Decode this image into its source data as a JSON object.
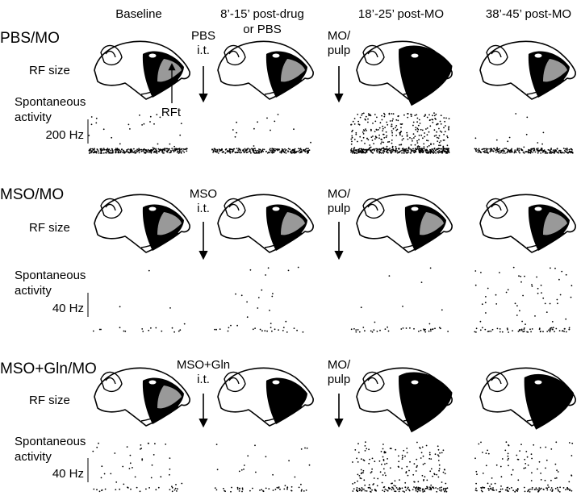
{
  "columns": [
    [
      "Baseline"
    ],
    [
      "8’-15’ post-drug",
      "or PBS"
    ],
    [
      "18’-25’ post-MO"
    ],
    [
      "38’-45’ post-MO"
    ]
  ],
  "annotation": "RFt",
  "rows": [
    {
      "title": "PBS/MO",
      "rf_label": "RF size",
      "activity_label": [
        "Spontaneous",
        "activity"
      ],
      "scale": "200 Hz",
      "drug": [
        "PBS",
        "i.t."
      ],
      "stimulus": [
        "MO/",
        "pulp"
      ]
    },
    {
      "title": "MSO/MO",
      "rf_label": "RF size",
      "activity_label": [
        "Spontaneous",
        "activity"
      ],
      "scale": "40 Hz",
      "drug": [
        "MSO",
        "i.t."
      ],
      "stimulus": [
        "MO/",
        "pulp"
      ]
    },
    {
      "title": "MSO+Gln/MO",
      "rf_label": "RF size",
      "activity_label": [
        "Spontaneous",
        "activity"
      ],
      "scale": "40 Hz",
      "drug": [
        "MSO+Gln",
        "i.t."
      ],
      "stimulus": [
        "MO/",
        "pulp"
      ]
    }
  ]
}
